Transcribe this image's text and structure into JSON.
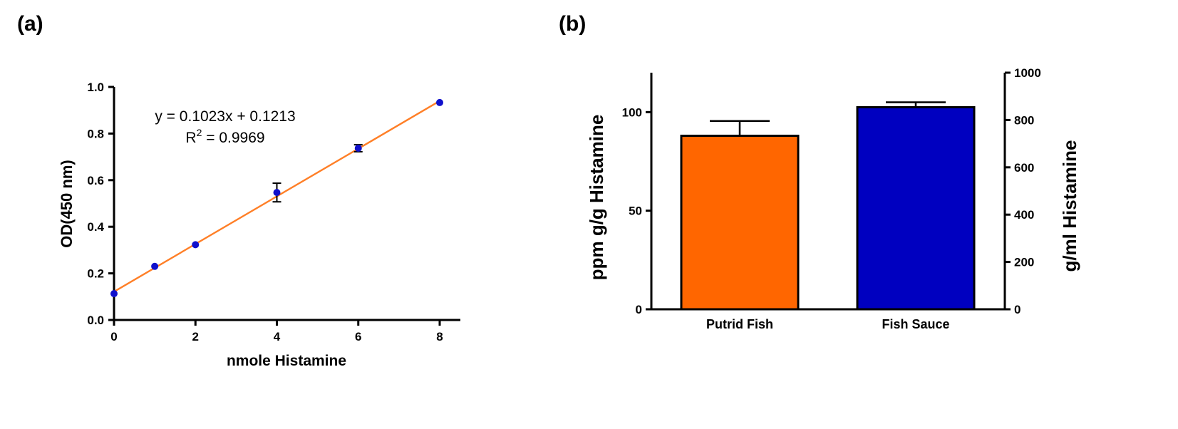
{
  "panels": [
    {
      "label": "(a)"
    },
    {
      "label": "(b)"
    }
  ],
  "chart_data": [
    {
      "type": "scatter",
      "xlabel": "nmole Histamine",
      "ylabel": "OD(450 nm)",
      "xlim": [
        0,
        8.5
      ],
      "ylim": [
        0,
        1.0
      ],
      "xticks": [
        "0",
        "2",
        "4",
        "6",
        "8"
      ],
      "yticks": [
        "0.0",
        "0.2",
        "0.4",
        "0.6",
        "0.8",
        "1.0"
      ],
      "points": [
        {
          "x": 0,
          "y": 0.113
        },
        {
          "x": 1,
          "y": 0.23
        },
        {
          "x": 2,
          "y": 0.323
        },
        {
          "x": 4,
          "y": 0.547,
          "err": 0.04
        },
        {
          "x": 6,
          "y": 0.737,
          "err": 0.015
        },
        {
          "x": 8,
          "y": 0.933
        }
      ],
      "fit": {
        "slope": 0.1023,
        "intercept": 0.1213,
        "color": "#ff7f27"
      },
      "point_color": "#1010cc",
      "annotation": {
        "equation": "y = 0.1023x + 0.1213",
        "r2_prefix": "R",
        "r2_sup": "2",
        "r2_value": " = 0.9969"
      }
    },
    {
      "type": "bar",
      "categories": [
        "Putrid Fish",
        "Fish Sauce"
      ],
      "values": [
        88,
        102.5
      ],
      "errors": [
        7.5,
        2.5
      ],
      "colors": [
        "#ff6600",
        "#0000c0"
      ],
      "ylabel_left": "ppm g/g Histamine",
      "ylabel_right": "g/ml Histamine",
      "ylim_left": [
        0,
        120
      ],
      "ylim_right": [
        0,
        1000
      ],
      "yticks_left": [
        "0",
        "50",
        "100"
      ],
      "yticks_right": [
        "0",
        "200",
        "400",
        "600",
        "800",
        "1000"
      ]
    }
  ]
}
